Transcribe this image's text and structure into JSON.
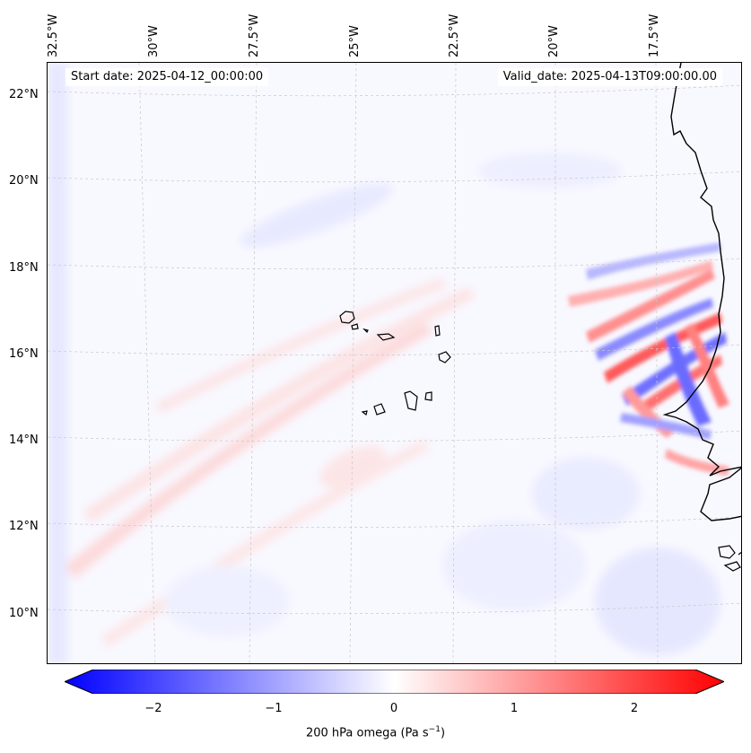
{
  "map": {
    "start_date": "Start date: 2025-04-12_00:00:00",
    "valid_date": "Valid_date: 2025-04-13T09:00:00.00",
    "longitude_labels": [
      "32.5°W",
      "30°W",
      "27.5°W",
      "25°W",
      "22.5°W",
      "20°W",
      "17.5°W"
    ],
    "latitude_labels": [
      "22°N",
      "20°N",
      "18°N",
      "16°N",
      "14°N",
      "12°N",
      "10°N"
    ],
    "extent": {
      "lon_min": -32.8,
      "lon_max": -15.5,
      "lat_min": 8.8,
      "lat_max": 22.8
    }
  },
  "colorbar": {
    "ticks": [
      "−2",
      "−1",
      "0",
      "1",
      "2"
    ],
    "tick_values": [
      -2,
      -1,
      0,
      1,
      2
    ],
    "range": [
      -2.6,
      2.6
    ],
    "negative_color": "#0000ff",
    "neutral_color": "#ffffff",
    "positive_color": "#ff0000",
    "label": "200 hPa omega (Pa s",
    "label_exponent": "−1",
    "label_close": ")"
  }
}
